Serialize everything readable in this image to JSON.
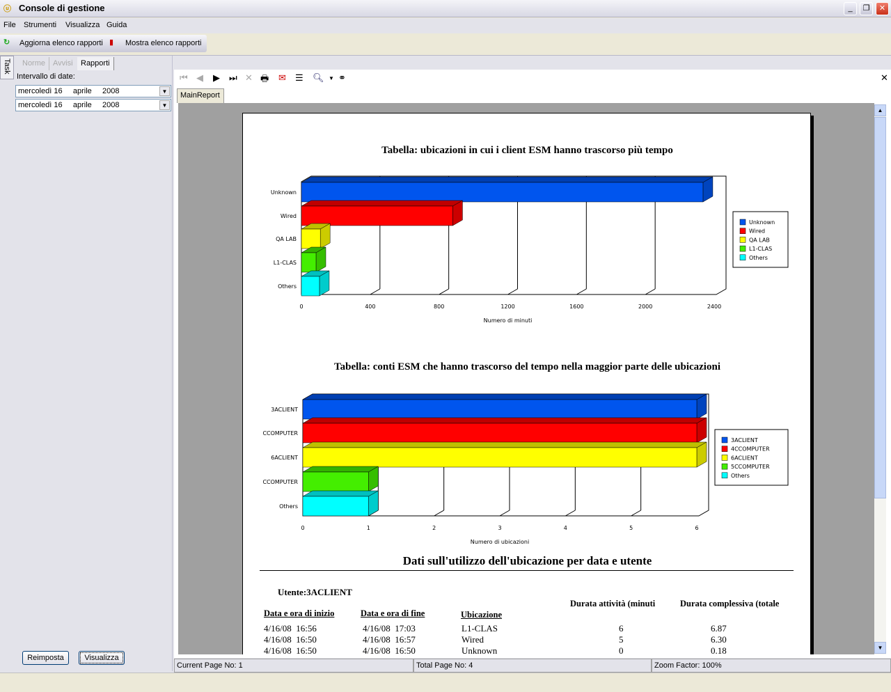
{
  "window": {
    "title": "Console di gestione",
    "min": "_",
    "max": "❐",
    "close": "✕"
  },
  "menu": [
    "File",
    "Strumenti",
    "Visualizza",
    "Guida"
  ],
  "toolbar": {
    "refresh": "Aggiorna elenco rapporti",
    "show": "Mostra elenco rapporti"
  },
  "task_label": "Task",
  "left": {
    "tabs": [
      "Norme",
      "Avvisi",
      "Rapporti"
    ],
    "date_range_label": "Intervallo di date:",
    "from": "mercoledì 16     aprile     2008",
    "to": "mercoledì 16     aprile     2008",
    "reset": "Reimposta",
    "view": "Visualizza"
  },
  "viewer": {
    "tab": "MainReport",
    "close": "✕",
    "status": {
      "current": "Current Page No: 1",
      "total": "Total Page No: 4",
      "zoom": "Zoom Factor: 100%"
    }
  },
  "report": {
    "section_title": "Dati sull'utilizzo dell'ubicazione per data e utente",
    "user": "Utente:3ACLIENT",
    "headers": [
      "Data e ora di inizio",
      "Data e ora di fine",
      "Ubicazione",
      "Durata attività (minuti",
      "Durata complessiva (totale"
    ],
    "rows": [
      [
        "4/16/08  16:56",
        "4/16/08  17:03",
        "L1-CLAS",
        "6",
        "6.87"
      ],
      [
        "4/16/08  16:50",
        "4/16/08  16:57",
        "Wired",
        "5",
        "6.30"
      ],
      [
        "4/16/08  16:50",
        "4/16/08  16:50",
        "Unknown",
        "0",
        "0.18"
      ]
    ]
  },
  "chart_data": [
    {
      "type": "bar",
      "orientation": "horizontal",
      "title": "Tabella: ubicazioni in cui i client ESM hanno trascorso più tempo",
      "categories": [
        "Unknown",
        "Wired",
        "QA LAB",
        "L1-CLAS",
        "Others"
      ],
      "values": [
        2335,
        880,
        110,
        85,
        105
      ],
      "legend": [
        "Unknown",
        "Wired",
        "QA LAB",
        "L1-CLAS",
        "Others"
      ],
      "colors": [
        "#0055ee",
        "#ff0000",
        "#ffff00",
        "#44ee00",
        "#00ffff"
      ],
      "xlabel": "Numero di minuti",
      "xlim": [
        0,
        2400
      ],
      "ticks": [
        "0",
        "400",
        "800",
        "1200",
        "1600",
        "2000",
        "2400"
      ],
      "legend_position": "right",
      "grid": true
    },
    {
      "type": "bar",
      "orientation": "horizontal",
      "title": "Tabella: conti ESM che hanno trascorso del tempo nella maggior parte delle ubicazioni",
      "categories": [
        "3ACLIENT",
        "CCOMPUTER",
        "6ACLIENT",
        "CCOMPUTER",
        "Others"
      ],
      "values": [
        6,
        6,
        6,
        1,
        1
      ],
      "legend": [
        "3ACLIENT",
        "4CCOMPUTER",
        "6ACLIENT",
        "5CCOMPUTER",
        "Others"
      ],
      "colors": [
        "#0055ee",
        "#ff0000",
        "#ffff00",
        "#44ee00",
        "#00ffff"
      ],
      "xlabel": "Numero di ubicazioni",
      "xlim": [
        0,
        6
      ],
      "ticks": [
        "0",
        "1",
        "2",
        "3",
        "4",
        "5",
        "6"
      ],
      "legend_position": "right",
      "grid": true
    }
  ]
}
